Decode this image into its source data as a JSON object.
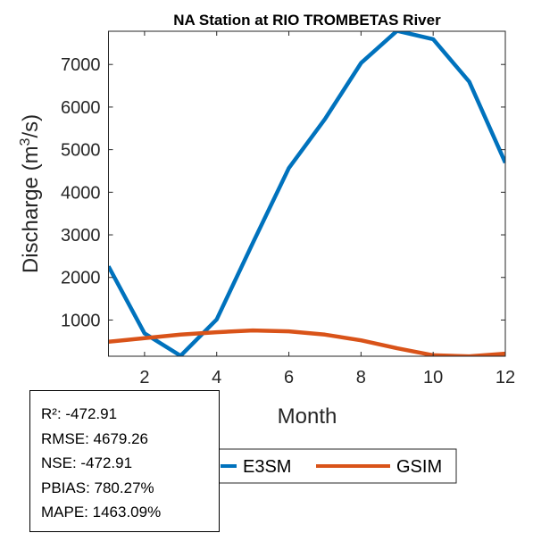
{
  "chart_data": {
    "type": "line",
    "title": "NA  Station at  RIO TROMBETAS  River",
    "xlabel": "Month",
    "ylabel_prefix": "Discharge (m",
    "ylabel_sup": "3",
    "ylabel_suffix": "/s)",
    "xlim": [
      1,
      12
    ],
    "ylim": [
      150,
      7780
    ],
    "xticks": [
      2,
      4,
      6,
      8,
      10,
      12
    ],
    "yticks": [
      1000,
      2000,
      3000,
      4000,
      5000,
      6000,
      7000
    ],
    "x": [
      1,
      2,
      3,
      4,
      5,
      6,
      7,
      8,
      9,
      10,
      11,
      12
    ],
    "series": [
      {
        "name": "E3SM",
        "color": "#0072BD",
        "values": [
          2260,
          686,
          160,
          1013,
          2805,
          4567,
          5720,
          7034,
          7790,
          7594,
          6594,
          4693
        ]
      },
      {
        "name": "GSIM",
        "color": "#D95319",
        "values": [
          489,
          573,
          657,
          713,
          755,
          734,
          657,
          524,
          336,
          174,
          147,
          210
        ]
      }
    ],
    "legend_placement": "bottom-outside",
    "grid": false
  },
  "stats": [
    "R²: -472.91",
    "RMSE: 4679.26",
    "NSE: -472.91",
    "PBIAS: 780.27%",
    "MAPE: 1463.09%"
  ]
}
